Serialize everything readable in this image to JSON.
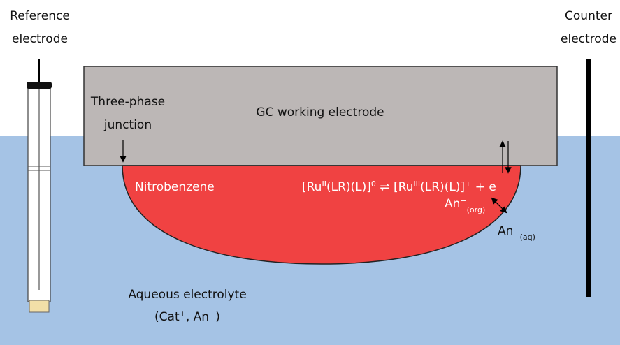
{
  "reference_electrode": [
    "Reference",
    "electrode"
  ],
  "counter_electrode": [
    "Counter",
    "electrode"
  ],
  "three_phase_junction": [
    "Three-phase",
    "junction"
  ],
  "working_electrode": "GC working electrode",
  "organic_phase": "Nitrobenzene",
  "equation": [
    {
      "text": "[Ru"
    },
    {
      "sup": "II"
    },
    {
      "text": "(LR)(L)]"
    },
    {
      "sup": "0"
    },
    {
      "text": " ⇌ [Ru"
    },
    {
      "sup": "III"
    },
    {
      "text": "(LR)(L)]"
    },
    {
      "sup": "+"
    },
    {
      "text": " + e"
    },
    {
      "sup": "−"
    }
  ],
  "anion_org": [
    {
      "text": "An"
    },
    {
      "sup": "−"
    },
    {
      "sub": "(org)"
    }
  ],
  "anion_aq": [
    {
      "text": "An"
    },
    {
      "sup": "−"
    },
    {
      "sub": "(aq)"
    }
  ],
  "aqueous_electrolyte": [
    [
      {
        "text": "Aqueous electrolyte"
      }
    ],
    [
      {
        "text": "(Cat"
      },
      {
        "sup": "+"
      },
      {
        "text": ", An"
      },
      {
        "sup": "−"
      },
      {
        "text": ")"
      }
    ]
  ]
}
